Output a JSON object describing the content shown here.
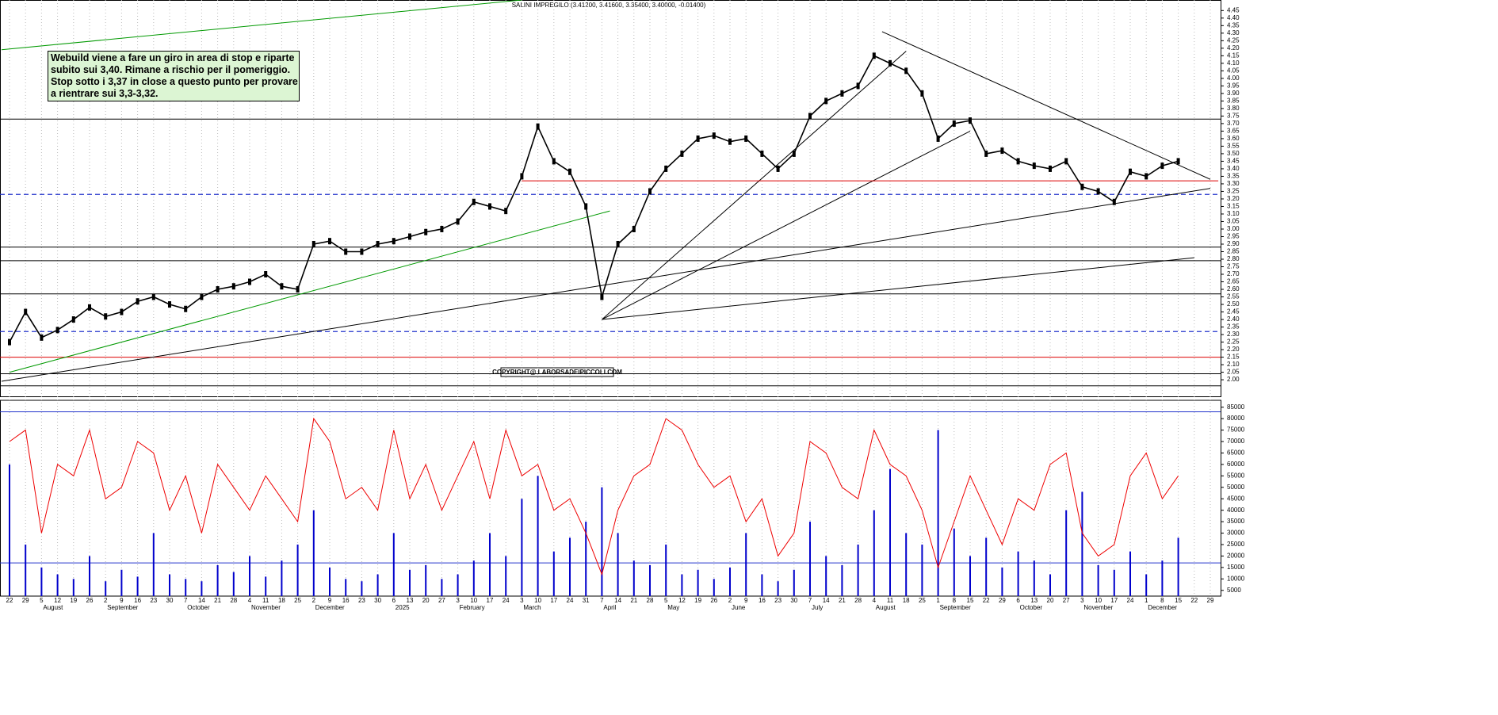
{
  "chart_data": {
    "type": "line",
    "title": "SALINI IMPREGILO (3.41200, 3.41600, 3.35400, 3.40000, -0.01400)",
    "annotation": [
      "Webuild viene a fare un giro in area di stop e riparte",
      "subito sui 3,40. Rimane a rischio per il pomeriggio.",
      "Stop sotto i 3,37 in close a questo punto per provare",
      "a rientrare sui 3,3-3,32."
    ],
    "copyright": "COPYRIGHT@ LABORSADEIPICCOLI.COM",
    "categories": [
      "22",
      "29",
      "5",
      "12",
      "19",
      "26",
      "2",
      "9",
      "16",
      "23",
      "30",
      "7",
      "14",
      "21",
      "28",
      "4",
      "11",
      "18",
      "25",
      "2",
      "9",
      "16",
      "23",
      "30",
      "6",
      "13",
      "20",
      "27",
      "3",
      "10",
      "17",
      "24",
      "3",
      "10",
      "17",
      "24",
      "31",
      "7",
      "14",
      "21",
      "28",
      "5",
      "12",
      "19",
      "26",
      "2",
      "9",
      "16",
      "23",
      "30",
      "7",
      "14",
      "21",
      "28",
      "4",
      "11",
      "18",
      "25",
      "1",
      "8",
      "15",
      "22",
      "29",
      "6",
      "13",
      "20",
      "27",
      "3",
      "10",
      "17",
      "24",
      "1",
      "8",
      "15",
      "22",
      "29"
    ],
    "month_labels": [
      null,
      null,
      "August",
      null,
      null,
      null,
      "September",
      null,
      null,
      null,
      null,
      "October",
      null,
      null,
      null,
      "November",
      null,
      null,
      null,
      "December",
      null,
      null,
      null,
      null,
      "2025",
      null,
      null,
      null,
      "February",
      null,
      null,
      null,
      "March",
      null,
      null,
      null,
      null,
      "April",
      null,
      null,
      null,
      "May",
      null,
      null,
      null,
      "June",
      null,
      null,
      null,
      null,
      "July",
      null,
      null,
      null,
      "August",
      null,
      null,
      null,
      "September",
      null,
      null,
      null,
      null,
      "October",
      null,
      null,
      null,
      "November",
      null,
      null,
      null,
      "December",
      null,
      null,
      null,
      null
    ],
    "series": [
      {
        "name": "Price",
        "color": "#000000",
        "values": [
          2.25,
          2.45,
          2.28,
          2.33,
          2.4,
          2.48,
          2.42,
          2.45,
          2.52,
          2.55,
          2.5,
          2.47,
          2.55,
          2.6,
          2.62,
          2.65,
          2.7,
          2.62,
          2.6,
          2.9,
          2.92,
          2.85,
          2.85,
          2.9,
          2.92,
          2.95,
          2.98,
          3.0,
          3.05,
          3.18,
          3.15,
          3.12,
          3.35,
          3.68,
          3.45,
          3.38,
          3.15,
          2.55,
          2.9,
          3.0,
          3.25,
          3.4,
          3.5,
          3.6,
          3.62,
          3.58,
          3.6,
          3.5,
          3.4,
          3.5,
          3.75,
          3.85,
          3.9,
          3.95,
          4.15,
          4.1,
          4.05,
          3.9,
          3.6,
          3.7,
          3.72,
          3.5,
          3.52,
          3.45,
          3.42,
          3.4,
          3.45,
          3.28,
          3.25,
          3.18,
          3.38,
          3.35,
          3.42,
          3.45,
          null,
          null
        ]
      },
      {
        "name": "Volume",
        "color": "#0000cc",
        "values": [
          60000,
          25000,
          15000,
          12000,
          10000,
          20000,
          9000,
          14000,
          11000,
          30000,
          12000,
          10000,
          9000,
          16000,
          13000,
          20000,
          11000,
          18000,
          25000,
          40000,
          15000,
          10000,
          9000,
          12000,
          30000,
          14000,
          16000,
          10000,
          12000,
          18000,
          30000,
          20000,
          45000,
          55000,
          22000,
          28000,
          35000,
          50000,
          30000,
          18000,
          16000,
          25000,
          12000,
          14000,
          10000,
          15000,
          30000,
          12000,
          9000,
          14000,
          35000,
          20000,
          16000,
          25000,
          40000,
          58000,
          30000,
          25000,
          75000,
          32000,
          20000,
          28000,
          15000,
          22000,
          18000,
          12000,
          40000,
          48000,
          16000,
          14000,
          22000,
          12000,
          18000,
          28000,
          null,
          null
        ]
      },
      {
        "name": "Oscillator",
        "color": "#ee0000",
        "values": [
          70000,
          75000,
          30000,
          60000,
          55000,
          75000,
          45000,
          50000,
          70000,
          65000,
          40000,
          55000,
          30000,
          60000,
          50000,
          40000,
          55000,
          45000,
          35000,
          80000,
          70000,
          45000,
          50000,
          40000,
          75000,
          45000,
          60000,
          40000,
          55000,
          70000,
          45000,
          75000,
          55000,
          60000,
          40000,
          45000,
          30000,
          12000,
          40000,
          55000,
          60000,
          80000,
          75000,
          60000,
          50000,
          55000,
          35000,
          45000,
          20000,
          30000,
          70000,
          65000,
          50000,
          45000,
          75000,
          60000,
          55000,
          40000,
          15000,
          35000,
          55000,
          40000,
          25000,
          45000,
          40000,
          60000,
          65000,
          30000,
          20000,
          25000,
          55000,
          65000,
          45000,
          55000,
          null,
          null
        ]
      }
    ],
    "ylim": [
      1.89,
      4.52
    ],
    "yticks": [
      {
        "value": 2.0,
        "label": "2.00"
      },
      {
        "value": 2.05,
        "label": "2.05"
      },
      {
        "value": 2.1,
        "label": "2.10"
      },
      {
        "value": 2.15,
        "label": "2.15"
      },
      {
        "value": 2.2,
        "label": "2.20"
      },
      {
        "value": 2.25,
        "label": "2.25"
      },
      {
        "value": 2.3,
        "label": "2.30"
      },
      {
        "value": 2.35,
        "label": "2.35"
      },
      {
        "value": 2.4,
        "label": "2.40"
      },
      {
        "value": 2.45,
        "label": "2.45"
      },
      {
        "value": 2.5,
        "label": "2.50"
      },
      {
        "value": 2.55,
        "label": "2.55"
      },
      {
        "value": 2.6,
        "label": "2.60"
      },
      {
        "value": 2.65,
        "label": "2.65"
      },
      {
        "value": 2.7,
        "label": "2.70"
      },
      {
        "value": 2.75,
        "label": "2.75"
      },
      {
        "value": 2.8,
        "label": "2.80"
      },
      {
        "value": 2.85,
        "label": "2.85"
      },
      {
        "value": 2.9,
        "label": "2.90"
      },
      {
        "value": 2.95,
        "label": "2.95"
      },
      {
        "value": 3.0,
        "label": "3.00"
      },
      {
        "value": 3.05,
        "label": "3.05"
      },
      {
        "value": 3.1,
        "label": "3.10"
      },
      {
        "value": 3.15,
        "label": "3.15"
      },
      {
        "value": 3.2,
        "label": "3.20"
      },
      {
        "value": 3.25,
        "label": "3.25"
      },
      {
        "value": 3.3,
        "label": "3.30"
      },
      {
        "value": 3.35,
        "label": "3.35"
      },
      {
        "value": 3.4,
        "label": "3.40"
      },
      {
        "value": 3.45,
        "label": "3.45"
      },
      {
        "value": 3.5,
        "label": "3.50"
      },
      {
        "value": 3.55,
        "label": "3.55"
      },
      {
        "value": 3.6,
        "label": "3.60"
      },
      {
        "value": 3.65,
        "label": "3.65"
      },
      {
        "value": 3.7,
        "label": "3.70"
      },
      {
        "value": 3.75,
        "label": "3.75"
      },
      {
        "value": 3.8,
        "label": "3.80"
      },
      {
        "value": 3.85,
        "label": "3.85"
      },
      {
        "value": 3.9,
        "label": "3.90"
      },
      {
        "value": 3.95,
        "label": "3.95"
      },
      {
        "value": 4.0,
        "label": "4.00"
      },
      {
        "value": 4.05,
        "label": "4.05"
      },
      {
        "value": 4.1,
        "label": "4.10"
      },
      {
        "value": 4.15,
        "label": "4.15"
      },
      {
        "value": 4.2,
        "label": "4.20"
      },
      {
        "value": 4.25,
        "label": "4.25"
      },
      {
        "value": 4.3,
        "label": "4.30"
      },
      {
        "value": 4.35,
        "label": "4.35"
      },
      {
        "value": 4.4,
        "label": "4.40"
      },
      {
        "value": 4.45,
        "label": "4.45"
      }
    ],
    "y2lim": [
      2500,
      88000
    ],
    "y2ticks": [
      5000,
      10000,
      15000,
      20000,
      25000,
      30000,
      35000,
      40000,
      45000,
      50000,
      55000,
      60000,
      65000,
      70000,
      75000,
      80000,
      85000
    ],
    "hlines": [
      {
        "value": 3.73,
        "color": "#000000"
      },
      {
        "value": 3.23,
        "color": "#2233cc",
        "dash": true
      },
      {
        "value": 2.88,
        "color": "#000000"
      },
      {
        "value": 2.79,
        "color": "#000000"
      },
      {
        "value": 2.57,
        "color": "#000000"
      },
      {
        "value": 2.32,
        "color": "#2233cc",
        "dash": true
      },
      {
        "value": 2.15,
        "color": "#dd0000"
      },
      {
        "value": 2.04,
        "color": "#000000"
      },
      {
        "value": 1.96,
        "color": "#000000"
      }
    ],
    "y2hlines": [
      83000,
      17000
    ],
    "trendlines": [
      {
        "color": "#009900",
        "x": [
          0,
          37.5
        ],
        "y": [
          2.05,
          3.12
        ]
      },
      {
        "color": "#009900",
        "x": [
          -0.5,
          32
        ],
        "y": [
          4.19,
          4.52
        ]
      },
      {
        "color": "#000000",
        "x": [
          -0.5,
          75
        ],
        "y": [
          1.99,
          3.27
        ]
      },
      {
        "color": "#000000",
        "x": [
          37,
          56
        ],
        "y": [
          2.4,
          4.18
        ]
      },
      {
        "color": "#000000",
        "x": [
          37,
          60
        ],
        "y": [
          2.4,
          3.65
        ]
      },
      {
        "color": "#000000",
        "x": [
          37,
          74
        ],
        "y": [
          2.4,
          2.81
        ]
      },
      {
        "color": "#000000",
        "x": [
          54.5,
          75
        ],
        "y": [
          4.31,
          3.33
        ]
      },
      {
        "color": "#dd0000",
        "x": [
          32,
          75.5
        ],
        "y": [
          3.32,
          3.32
        ]
      }
    ]
  }
}
